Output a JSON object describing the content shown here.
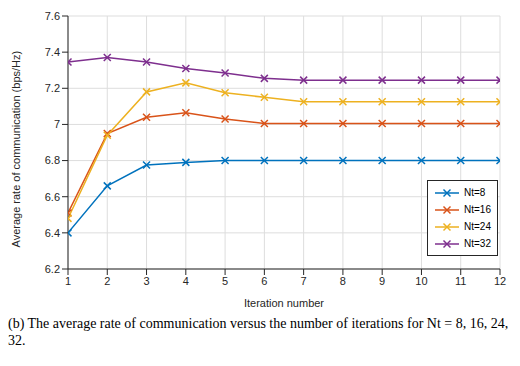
{
  "chart_data": {
    "type": "line",
    "title": "(b) The average rate of communication versus the number of iterations for Nt = 8, 16, 24, 32.",
    "x_label": "Iteration number",
    "y_label": "Average rate of communication (bps/Hz)",
    "x": [
      1,
      2,
      3,
      4,
      5,
      6,
      7,
      8,
      9,
      10,
      11,
      12
    ],
    "xlim": [
      1,
      12
    ],
    "xticks": [
      1,
      2,
      3,
      4,
      5,
      6,
      7,
      8,
      9,
      10,
      11,
      12
    ],
    "ylim": [
      6.2,
      7.6
    ],
    "yticks": [
      6.2,
      6.4,
      6.6,
      6.8,
      7,
      7.2,
      7.4,
      7.6
    ],
    "grid": true,
    "legend": "lower right",
    "series": [
      {
        "name": "Nt=8",
        "color": "#0072bd",
        "marker": "x",
        "values": [
          6.4,
          6.66,
          6.775,
          6.79,
          6.8,
          6.8,
          6.8,
          6.8,
          6.8,
          6.8,
          6.8,
          6.8
        ]
      },
      {
        "name": "Nt=16",
        "color": "#d95319",
        "marker": "x",
        "values": [
          6.51,
          6.95,
          7.04,
          7.065,
          7.03,
          7.005,
          7.005,
          7.005,
          7.005,
          7.005,
          7.005,
          7.005
        ]
      },
      {
        "name": "Nt=24",
        "color": "#edb120",
        "marker": "x",
        "values": [
          6.48,
          6.94,
          7.18,
          7.23,
          7.175,
          7.15,
          7.125,
          7.125,
          7.125,
          7.125,
          7.125,
          7.125
        ]
      },
      {
        "name": "Nt=32",
        "color": "#7e2f8e",
        "marker": "x",
        "values": [
          7.345,
          7.37,
          7.345,
          7.31,
          7.285,
          7.255,
          7.245,
          7.245,
          7.245,
          7.245,
          7.245,
          7.245
        ]
      }
    ]
  }
}
